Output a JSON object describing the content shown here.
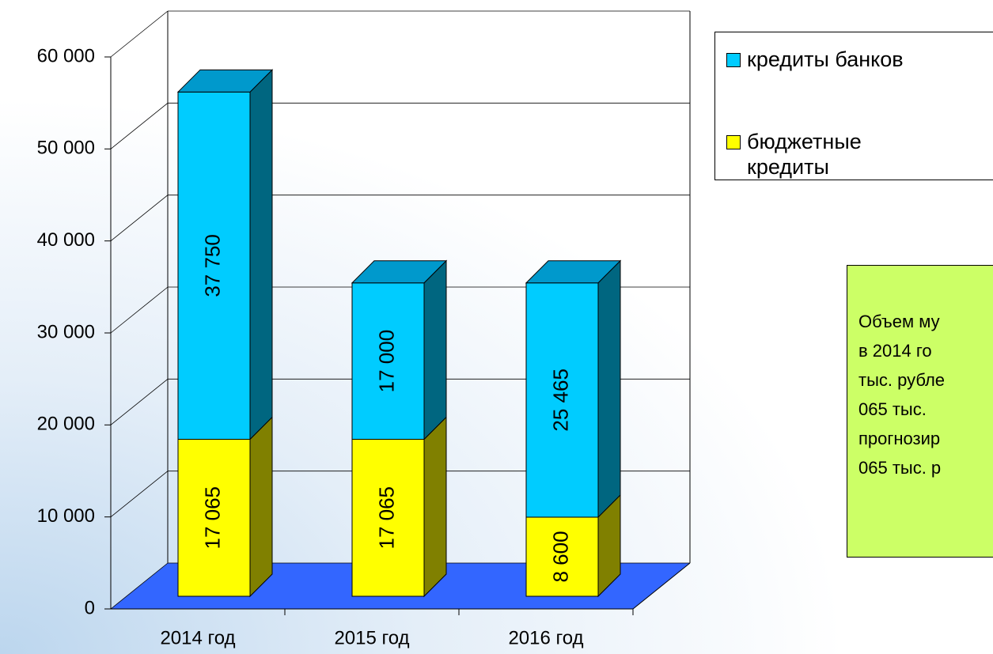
{
  "chart_data": {
    "type": "bar3d_stacked",
    "categories": [
      "2014 год",
      "2015 год",
      "2016 год"
    ],
    "series": [
      {
        "name": "бюджетные кредиты",
        "color": "#ffff00",
        "side_color": "#808000",
        "values": [
          17065,
          17065,
          8600
        ],
        "value_labels": [
          "17 065",
          "17 065",
          "8 600"
        ]
      },
      {
        "name": "кредиты банков",
        "color": "#00ccff",
        "side_color": "#006680",
        "values": [
          37750,
          17000,
          25465
        ],
        "value_labels": [
          "37 750",
          "17 000",
          "25 465"
        ]
      }
    ],
    "ylim": [
      0,
      60000
    ],
    "yticks": [
      {
        "value": 0,
        "label": "0"
      },
      {
        "value": 10000,
        "label": "10 000"
      },
      {
        "value": 20000,
        "label": "20 000"
      },
      {
        "value": 30000,
        "label": "30 000"
      },
      {
        "value": 40000,
        "label": "40 000"
      },
      {
        "value": 50000,
        "label": "50 000"
      },
      {
        "value": 60000,
        "label": "60 000"
      }
    ],
    "grid": true,
    "floor_color": "#3366ff",
    "annotation_lines": [
      "Объем му",
      "в 2014 го",
      "тыс. рубле",
      "065 тыс.",
      "прогнозир",
      "065 тыс. р"
    ],
    "annotation_color": "#ccff66"
  }
}
